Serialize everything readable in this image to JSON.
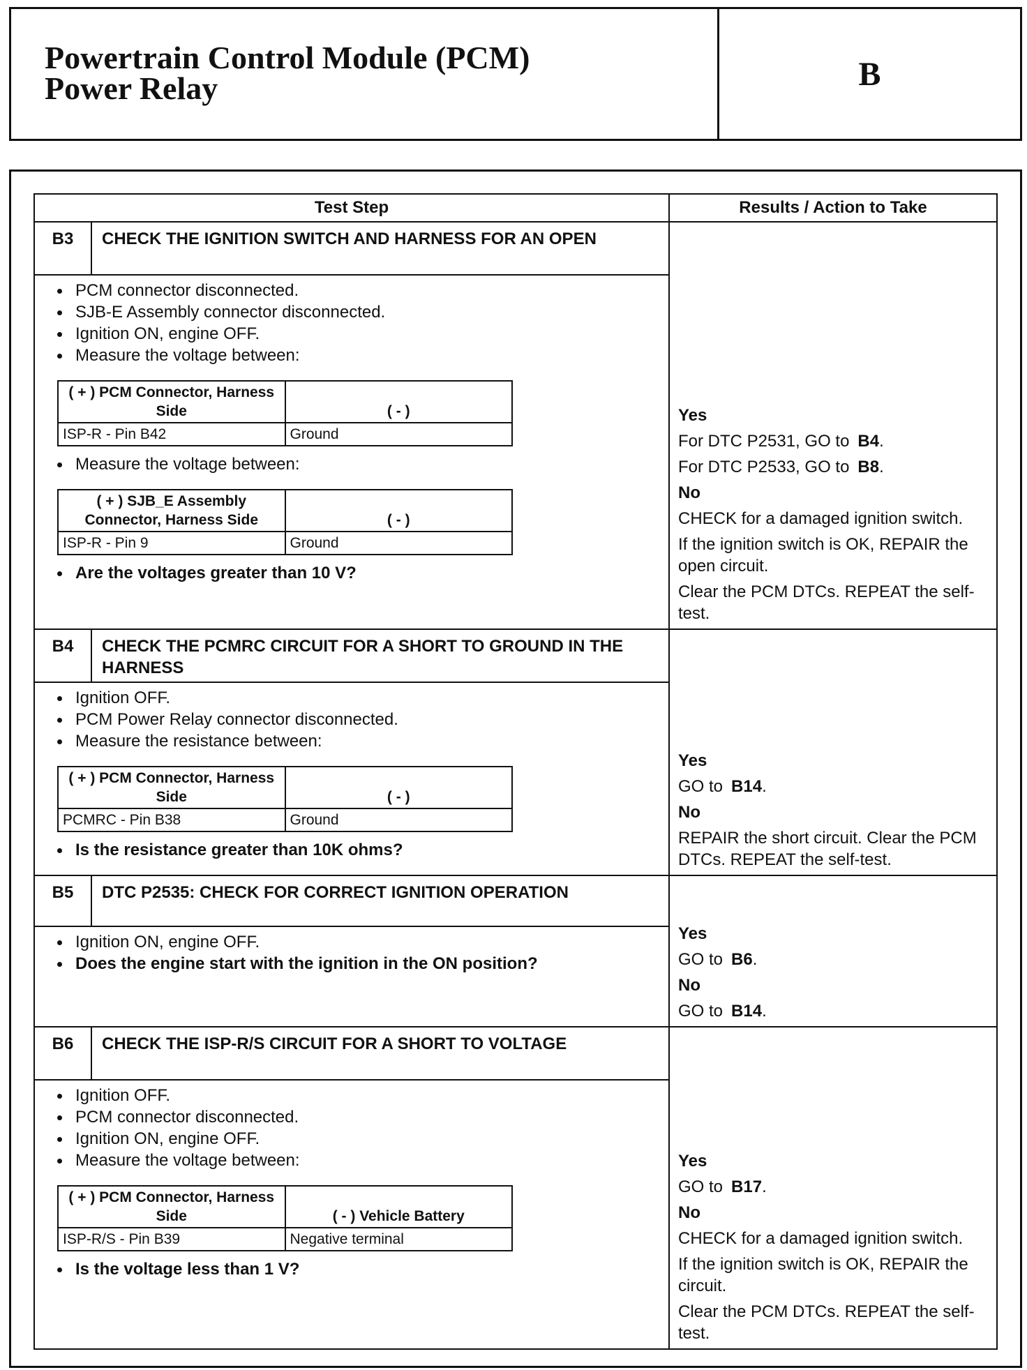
{
  "header": {
    "title_lines": [
      "Powertrain Control Module (PCM)",
      "Power Relay"
    ],
    "section": "B"
  },
  "table": {
    "headers": [
      "Test Step",
      "Results / Action to Take"
    ],
    "steps": [
      {
        "id": "B3",
        "title": "CHECK THE IGNITION SWITCH AND HARNESS FOR AN OPEN",
        "content": [
          {
            "bullet": "PCM connector disconnected."
          },
          {
            "bullet": "SJB-E Assembly connector disconnected."
          },
          {
            "bullet": "Ignition ON, engine OFF."
          },
          {
            "bullet": "Measure the voltage between:"
          },
          {
            "table": {
              "headers": [
                "( + ) PCM Connector, Harness Side",
                "( - )"
              ],
              "rows": [
                [
                  "ISP-R - Pin B42",
                  "Ground"
                ]
              ]
            }
          },
          {
            "bullet": "Measure the voltage between:"
          },
          {
            "table": {
              "headers": [
                "( + ) SJB_E Assembly Connector, Harness Side",
                "( - )"
              ],
              "rows": [
                [
                  "ISP-R - Pin 9",
                  "Ground"
                ]
              ]
            }
          },
          {
            "question": "Are the voltages greater than 10 V?"
          }
        ],
        "results": [
          {
            "label": "Yes"
          },
          {
            "text": "For DTC P2531, GO to",
            "ref": "B4",
            "end": "."
          },
          {
            "text": "For DTC P2533, GO to",
            "ref": "B8",
            "end": "."
          },
          {
            "label": "No"
          },
          {
            "text": "CHECK for a damaged ignition switch."
          },
          {
            "text": "If the ignition switch is OK, REPAIR the open circuit."
          },
          {
            "text": "Clear the PCM DTCs. REPEAT the self-test."
          }
        ]
      },
      {
        "id": "B4",
        "title": "CHECK THE PCMRC CIRCUIT FOR A SHORT TO GROUND IN THE HARNESS",
        "content": [
          {
            "bullet": "Ignition OFF."
          },
          {
            "bullet": "PCM Power Relay connector disconnected."
          },
          {
            "bullet": "Measure the resistance between:"
          },
          {
            "table": {
              "headers": [
                "( + ) PCM Connector, Harness Side",
                "( - )"
              ],
              "rows": [
                [
                  "PCMRC - Pin B38",
                  "Ground"
                ]
              ]
            }
          },
          {
            "question": "Is the resistance greater than 10K ohms?"
          }
        ],
        "results": [
          {
            "label": "Yes"
          },
          {
            "text": "GO to",
            "ref": "B14",
            "end": "."
          },
          {
            "label": "No"
          },
          {
            "text": "REPAIR the short circuit. Clear the PCM DTCs. REPEAT the self-test."
          }
        ]
      },
      {
        "id": "B5",
        "title": "DTC P2535: CHECK FOR CORRECT IGNITION OPERATION",
        "content": [
          {
            "bullet": "Ignition ON, engine OFF."
          },
          {
            "question": "Does the engine start with the ignition in the ON position?"
          }
        ],
        "results": [
          {
            "label": "Yes"
          },
          {
            "text": "GO to",
            "ref": "B6",
            "end": "."
          },
          {
            "label": "No"
          },
          {
            "text": "GO to",
            "ref": "B14",
            "end": "."
          }
        ]
      },
      {
        "id": "B6",
        "title": "CHECK THE ISP-R/S CIRCUIT FOR A SHORT TO VOLTAGE",
        "content": [
          {
            "bullet": "Ignition OFF."
          },
          {
            "bullet": "PCM connector disconnected."
          },
          {
            "bullet": "Ignition ON, engine OFF."
          },
          {
            "bullet": "Measure the voltage between:"
          },
          {
            "table": {
              "headers": [
                "( + ) PCM Connector, Harness Side",
                "( - ) Vehicle Battery"
              ],
              "rows": [
                [
                  "ISP-R/S - Pin B39",
                  "Negative terminal"
                ]
              ]
            }
          },
          {
            "question": "Is the voltage less than 1 V?"
          }
        ],
        "results": [
          {
            "label": "Yes"
          },
          {
            "text": "GO to",
            "ref": "B17",
            "end": "."
          },
          {
            "label": "No"
          },
          {
            "text": "CHECK for a damaged ignition switch."
          },
          {
            "text": "If the ignition switch is OK, REPAIR the circuit."
          },
          {
            "text": "Clear the PCM DTCs. REPEAT the self-test."
          }
        ]
      }
    ]
  }
}
